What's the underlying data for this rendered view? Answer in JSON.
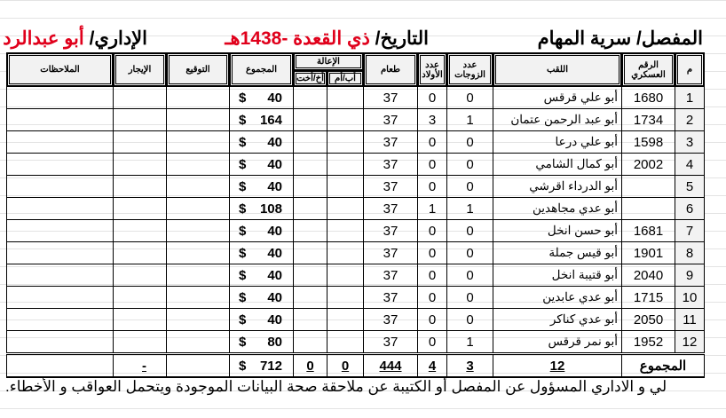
{
  "header": {
    "unit_label": "المفصل/ سرية المهام",
    "date_label": "التاريخ/",
    "date_value": "ذي القعدة -1438هـ",
    "admin_label": "الإداري/",
    "admin_value": "أبو عبدالرد"
  },
  "columns": {
    "m": "م",
    "military_no": "الرقم العسكري",
    "title": "اللقب",
    "wives": "عدد الزوجات",
    "children": "عدد الأولاد",
    "food": "طعام",
    "support": "الإعالة",
    "support_parent": "أب/أم",
    "support_sibling": "أخ/أخت",
    "total": "المجموع",
    "signature": "التوقيع",
    "rent": "الإيجار",
    "notes": "الملاحظات"
  },
  "rows": [
    {
      "m": "1",
      "military_no": "1680",
      "title": "أبو علي قرقس",
      "wives": "0",
      "children": "0",
      "food": "37",
      "total": "40"
    },
    {
      "m": "2",
      "military_no": "1734",
      "title": "أبو عبد الرحمن عتمان",
      "wives": "1",
      "children": "3",
      "food": "37",
      "total": "164"
    },
    {
      "m": "3",
      "military_no": "1598",
      "title": "أبو علي درعا",
      "wives": "0",
      "children": "0",
      "food": "37",
      "total": "40"
    },
    {
      "m": "4",
      "military_no": "2002",
      "title": "أبو كمال الشامي",
      "wives": "0",
      "children": "0",
      "food": "37",
      "total": "40"
    },
    {
      "m": "5",
      "military_no": "",
      "title": "أبو الدرداء اقرشي",
      "wives": "0",
      "children": "0",
      "food": "37",
      "total": "40"
    },
    {
      "m": "6",
      "military_no": "",
      "title": "أبو عدي مجاهدين",
      "wives": "1",
      "children": "1",
      "food": "37",
      "total": "108"
    },
    {
      "m": "7",
      "military_no": "1681",
      "title": "أبو حسن انخل",
      "wives": "0",
      "children": "0",
      "food": "37",
      "total": "40"
    },
    {
      "m": "8",
      "military_no": "1901",
      "title": "أبو قيس جملة",
      "wives": "0",
      "children": "0",
      "food": "37",
      "total": "40"
    },
    {
      "m": "9",
      "military_no": "2040",
      "title": "أبو قتيبة انخل",
      "wives": "0",
      "children": "0",
      "food": "37",
      "total": "40"
    },
    {
      "m": "10",
      "military_no": "1715",
      "title": "أبو عدي عابدين",
      "wives": "0",
      "children": "0",
      "food": "37",
      "total": "40"
    },
    {
      "m": "11",
      "military_no": "2050",
      "title": "أبو عدي كناكر",
      "wives": "0",
      "children": "0",
      "food": "37",
      "total": "40"
    },
    {
      "m": "12",
      "military_no": "1952",
      "title": "أبو نمر قرقس",
      "wives": "1",
      "children": "0",
      "food": "37",
      "total": "80"
    }
  ],
  "currency": "$",
  "totals": {
    "label": "المجموع",
    "count": "12",
    "wives": "3",
    "children": "4",
    "food": "444",
    "support_parent": "0",
    "support_sibling": "0",
    "total": "712",
    "rent": "-"
  },
  "footer_text": "لي و الاداري المسؤول عن المفصل أو الكتيبة عن ملاحقة صحة البيانات الموجودة ويتحمل العواقب و الأخطاء."
}
